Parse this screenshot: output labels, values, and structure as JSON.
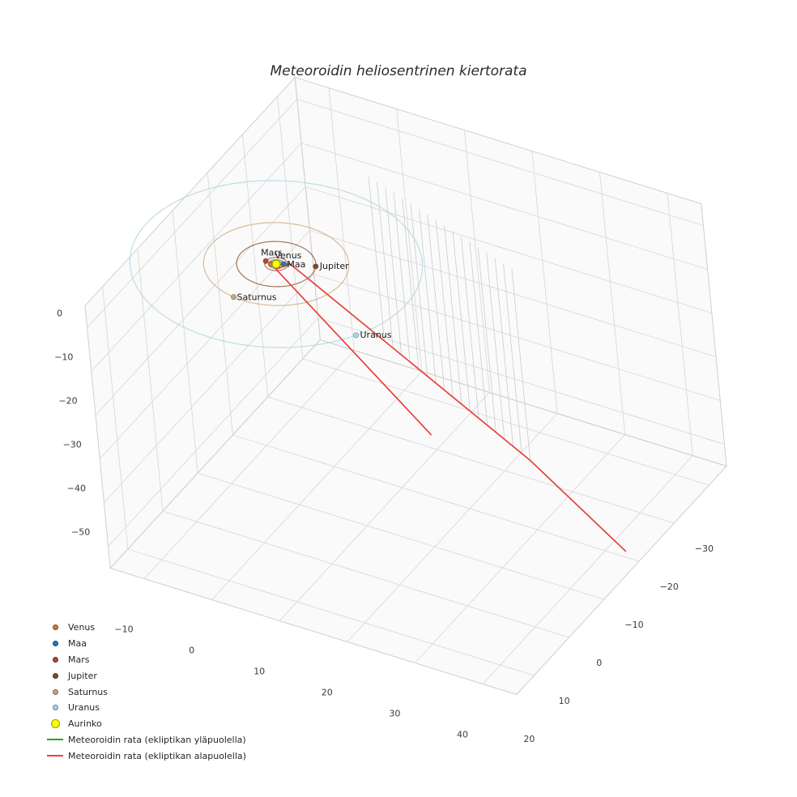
{
  "title": "Meteoroidin heliosentrinen kiertorata",
  "legend": {
    "items": [
      {
        "id": "venus",
        "type": "dot",
        "label": "Venus",
        "color": "#c87b32"
      },
      {
        "id": "maa",
        "type": "dot",
        "label": "Maa",
        "color": "#2878b5"
      },
      {
        "id": "mars",
        "type": "dot",
        "label": "Mars",
        "color": "#b0472e"
      },
      {
        "id": "jupiter",
        "type": "dot",
        "label": "Jupiter",
        "color": "#7d4b27"
      },
      {
        "id": "saturnus",
        "type": "dot",
        "label": "Saturnus",
        "color": "#c9a57c"
      },
      {
        "id": "uranus",
        "type": "dot",
        "label": "Uranus",
        "color": "#a8d3e3"
      },
      {
        "id": "aurinko",
        "type": "dot-large",
        "label": "Aurinko",
        "color": "#ffff00"
      },
      {
        "id": "rata-ylapuolella",
        "type": "line",
        "label": "Meteoroidin rata (ekliptikan yläpuolella)",
        "color": "#2ca02c"
      },
      {
        "id": "rata-alapuolella",
        "type": "line",
        "label": "Meteoroidin rata (ekliptikan alapuolella)",
        "color": "#e8413c"
      }
    ]
  },
  "chart_data": {
    "type": "line",
    "subtype": "3d_heliocentric_orbit_plot",
    "title": "Meteoroidin heliosentrinen kiertorata",
    "grid": true,
    "legend_position": "lower-left",
    "axes": {
      "x": {
        "range": [
          -15,
          45
        ],
        "tick_values": [
          -10,
          0,
          10,
          20,
          30,
          40
        ],
        "tick_labels": [
          "−10",
          "0",
          "10",
          "20",
          "30",
          "40"
        ],
        "label_offset": [
          -25,
          66
        ]
      },
      "y": {
        "range": [
          -35,
          25
        ],
        "tick_values": [
          -30,
          -20,
          -10,
          0,
          10,
          20
        ],
        "tick_labels": [
          "−30",
          "−20",
          "−10",
          "0",
          "10",
          "20"
        ],
        "label_offset": [
          -6,
          82
        ]
      },
      "z": {
        "range": [
          -55,
          5
        ],
        "tick_values": [
          0,
          -10,
          -20,
          -30,
          -40,
          -50
        ],
        "tick_labels": [
          "0",
          "−10",
          "−20",
          "−30",
          "−40",
          "−50"
        ],
        "label_offset": [
          -34,
          -14
        ]
      }
    },
    "projection": {
      "origin": [
        341,
        326
      ],
      "x_vec": [
        8.36,
        2.6
      ],
      "y_vec": [
        -4.32,
        4.7
      ],
      "z_vec": [
        -0.52,
        -5.4
      ]
    },
    "style": {
      "pane_fill": "#f5f5f5",
      "pane_opacity": 0.5,
      "pane_edge": "#cfcfcf",
      "grid_color": "#d9d9d9",
      "tick_color": "#3a3a3a",
      "tick_font_px": 11,
      "label_color": "#1a1a1a",
      "label_font_px": 11,
      "stem_color": "#c9c9c9",
      "orbit_opacity": 0.75
    },
    "sun": {
      "name": "Aurinko",
      "color": "#ffff00",
      "edge_color": "#9a8a00",
      "position": [
        0,
        0,
        0
      ],
      "radius_px": 5
    },
    "planets": [
      {
        "name": "Venus",
        "color": "#c87b32",
        "orbit_radius_au": 0.72,
        "position": [
          -0.62,
          0.36,
          0
        ],
        "label_offset": [
          5,
          -7
        ]
      },
      {
        "name": "Maa",
        "color": "#2878b5",
        "orbit_radius_au": 1.0,
        "position": [
          0.87,
          -0.5,
          0
        ],
        "label_offset": [
          4,
          4
        ]
      },
      {
        "name": "Mars",
        "color": "#b0472e",
        "orbit_radius_au": 1.52,
        "position": [
          -1.52,
          0.05,
          0
        ],
        "label_offset": [
          -6,
          -7
        ]
      },
      {
        "name": "Jupiter",
        "color": "#7d4b27",
        "orbit_radius_au": 5.2,
        "position": [
          4.79,
          -2.03,
          0
        ],
        "label_offset": [
          5,
          3
        ]
      },
      {
        "name": "Saturnus",
        "color": "#c9a57c",
        "orbit_radius_au": 9.54,
        "position": [
          -1.41,
          9.43,
          0
        ],
        "label_offset": [
          4,
          4
        ]
      },
      {
        "name": "Uranus",
        "color": "#a8d3e3",
        "orbit_radius_au": 19.19,
        "position": [
          16.68,
          9.48,
          0
        ],
        "label_offset": [
          5,
          3
        ]
      }
    ],
    "trajectory": {
      "above": {
        "label": "Meteoroidin rata (ekliptikan yläpuolella)",
        "color": "#2ca02c",
        "points": [
          [
            0.5,
            0,
            0.1
          ],
          [
            1.8,
            -0.55,
            0.45
          ]
        ]
      },
      "below": {
        "label": "Meteoroidin rata (ekliptikan alapuolella)",
        "color": "#e8413c",
        "points": [
          [
            44.5,
            -7.7,
            -51
          ],
          [
            27.57,
            -13.98,
            -43.8
          ],
          [
            1.37,
            -23.74,
            -37.6
          ],
          [
            -15.5,
            -30.0,
            -33.6
          ],
          [
            0,
            0.2,
            -1
          ],
          [
            17,
            -7,
            -37
          ]
        ]
      }
    },
    "stems": {
      "color": "#c9c9c9",
      "points": [
        [
          1.37,
          -23.74,
          -37.6
        ],
        [
          2.91,
          -23.17,
          -37.96
        ],
        [
          4.45,
          -22.59,
          -38.33
        ],
        [
          5.99,
          -22.02,
          -38.69
        ],
        [
          7.54,
          -21.44,
          -39.06
        ],
        [
          9.08,
          -20.87,
          -39.42
        ],
        [
          10.62,
          -20.3,
          -39.79
        ],
        [
          12.16,
          -19.72,
          -40.15
        ],
        [
          13.7,
          -19.15,
          -40.52
        ],
        [
          15.24,
          -18.57,
          -40.88
        ],
        [
          16.78,
          -18.0,
          -41.25
        ],
        [
          18.32,
          -17.42,
          -41.61
        ],
        [
          19.87,
          -16.85,
          -41.98
        ],
        [
          21.41,
          -16.28,
          -42.34
        ],
        [
          22.95,
          -15.7,
          -42.71
        ],
        [
          24.49,
          -15.13,
          -43.07
        ],
        [
          26.03,
          -14.55,
          -43.44
        ],
        [
          27.57,
          -13.98,
          -43.8
        ]
      ]
    }
  }
}
